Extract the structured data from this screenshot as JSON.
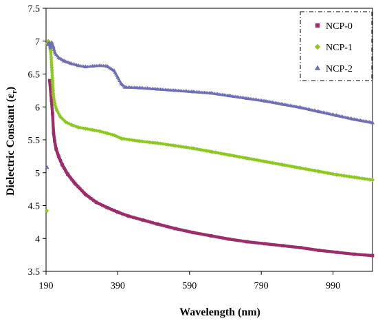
{
  "chart_data": {
    "type": "scatter",
    "title": "",
    "xlabel": "Wavelength (nm)",
    "ylabel_main": "Dielectric Constant  (ε",
    "ylabel_sub": "r",
    "ylabel_end": ")",
    "xlim": [
      190,
      1100
    ],
    "ylim": [
      3.5,
      7.5
    ],
    "x_ticks": [
      190,
      390,
      590,
      790,
      990
    ],
    "y_ticks": [
      "3.5",
      "4",
      "4.5",
      "5",
      "5.5",
      "6",
      "6.5",
      "7",
      "7.5"
    ],
    "grid": false,
    "legend_position": "top-right",
    "series": [
      {
        "name": "NCP-0",
        "color": "#9B2D6A",
        "marker": "square",
        "points": [
          [
            200,
            6.4
          ],
          [
            205,
            6.1
          ],
          [
            208,
            5.9
          ],
          [
            211,
            5.6
          ],
          [
            214,
            5.48
          ],
          [
            218,
            5.36
          ],
          [
            225,
            5.25
          ],
          [
            235,
            5.12
          ],
          [
            250,
            4.98
          ],
          [
            270,
            4.84
          ],
          [
            300,
            4.67
          ],
          [
            330,
            4.55
          ],
          [
            360,
            4.47
          ],
          [
            390,
            4.4
          ],
          [
            420,
            4.34
          ],
          [
            460,
            4.28
          ],
          [
            500,
            4.22
          ],
          [
            550,
            4.15
          ],
          [
            600,
            4.09
          ],
          [
            650,
            4.04
          ],
          [
            700,
            3.99
          ],
          [
            750,
            3.95
          ],
          [
            800,
            3.92
          ],
          [
            850,
            3.89
          ],
          [
            900,
            3.86
          ],
          [
            950,
            3.82
          ],
          [
            1000,
            3.79
          ],
          [
            1050,
            3.76
          ],
          [
            1100,
            3.74
          ]
        ]
      },
      {
        "name": "NCP-1",
        "color": "#8CC820",
        "marker": "diamond",
        "points": [
          [
            192,
            4.42
          ],
          [
            193,
            6.95
          ],
          [
            196,
            7.0
          ],
          [
            200,
            6.98
          ],
          [
            203,
            6.85
          ],
          [
            206,
            6.6
          ],
          [
            208,
            6.4
          ],
          [
            210,
            6.2
          ],
          [
            214,
            6.05
          ],
          [
            220,
            5.95
          ],
          [
            230,
            5.85
          ],
          [
            245,
            5.77
          ],
          [
            260,
            5.73
          ],
          [
            280,
            5.69
          ],
          [
            300,
            5.67
          ],
          [
            320,
            5.65
          ],
          [
            340,
            5.63
          ],
          [
            360,
            5.6
          ],
          [
            380,
            5.57
          ],
          [
            400,
            5.52
          ],
          [
            450,
            5.48
          ],
          [
            500,
            5.45
          ],
          [
            550,
            5.41
          ],
          [
            600,
            5.37
          ],
          [
            650,
            5.32
          ],
          [
            700,
            5.27
          ],
          [
            750,
            5.22
          ],
          [
            800,
            5.17
          ],
          [
            850,
            5.12
          ],
          [
            900,
            5.07
          ],
          [
            950,
            5.02
          ],
          [
            1000,
            4.97
          ],
          [
            1050,
            4.93
          ],
          [
            1100,
            4.89
          ]
        ]
      },
      {
        "name": "NCP-2",
        "color": "#6E6EB4",
        "marker": "triangle",
        "points": [
          [
            193,
            5.08
          ],
          [
            195,
            6.95
          ],
          [
            198,
            6.98
          ],
          [
            202,
            6.9
          ],
          [
            206,
            6.98
          ],
          [
            210,
            6.92
          ],
          [
            215,
            6.82
          ],
          [
            225,
            6.75
          ],
          [
            240,
            6.7
          ],
          [
            260,
            6.66
          ],
          [
            280,
            6.63
          ],
          [
            300,
            6.61
          ],
          [
            320,
            6.62
          ],
          [
            340,
            6.63
          ],
          [
            360,
            6.62
          ],
          [
            380,
            6.55
          ],
          [
            390,
            6.45
          ],
          [
            400,
            6.35
          ],
          [
            410,
            6.3
          ],
          [
            450,
            6.29
          ],
          [
            500,
            6.27
          ],
          [
            550,
            6.25
          ],
          [
            600,
            6.23
          ],
          [
            650,
            6.21
          ],
          [
            700,
            6.17
          ],
          [
            750,
            6.13
          ],
          [
            800,
            6.09
          ],
          [
            850,
            6.04
          ],
          [
            900,
            5.99
          ],
          [
            950,
            5.93
          ],
          [
            1000,
            5.87
          ],
          [
            1050,
            5.81
          ],
          [
            1100,
            5.76
          ]
        ]
      }
    ]
  }
}
